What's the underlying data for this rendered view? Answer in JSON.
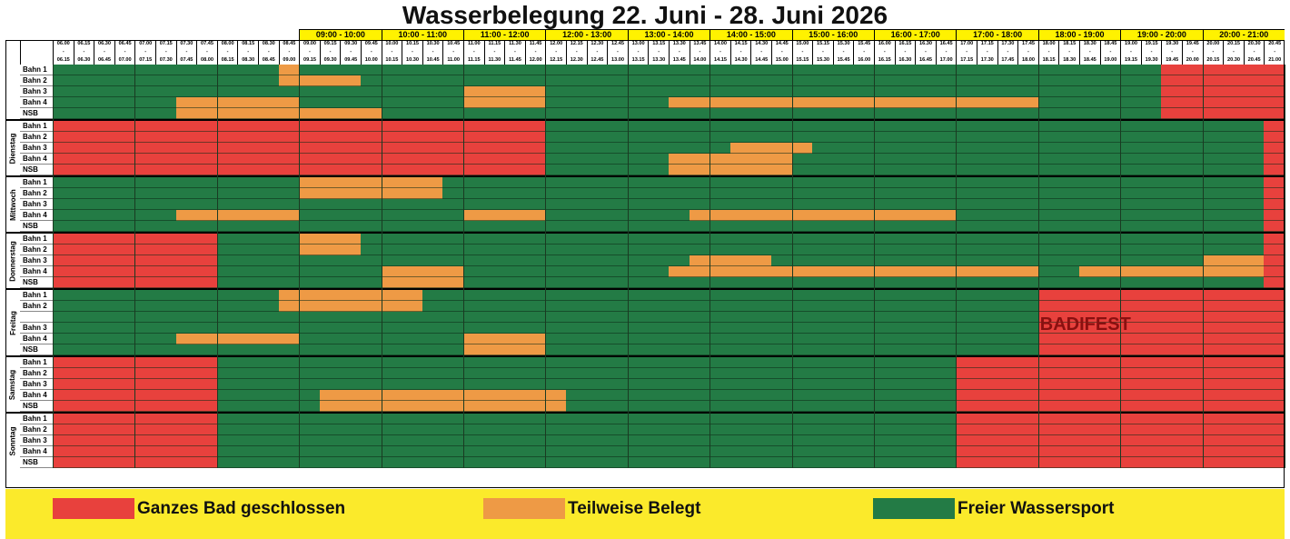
{
  "title": "Wasserbelegung 22. Juni - 28. Juni 2026",
  "colors": {
    "closed": "#e8413d",
    "partial": "#ee9a45",
    "free": "#237b45"
  },
  "hour_headers": [
    "09:00 - 10:00",
    "10:00 - 11:00",
    "11:00 - 12:00",
    "12:00 - 13:00",
    "13:00 - 14:00",
    "14:00 - 15:00",
    "15:00 - 16:00",
    "16:00 - 17:00",
    "17:00 - 18:00",
    "18:00 - 19:00",
    "19:00 - 20:00",
    "20:00 - 21:00"
  ],
  "slots": [
    {
      "from": "06.00",
      "to": "06.15"
    },
    {
      "from": "06.15",
      "to": "06.30"
    },
    {
      "from": "06.30",
      "to": "06.45"
    },
    {
      "from": "06.45",
      "to": "07.00"
    },
    {
      "from": "07.00",
      "to": "07.15"
    },
    {
      "from": "07.15",
      "to": "07.30"
    },
    {
      "from": "07.30",
      "to": "07.45"
    },
    {
      "from": "07.45",
      "to": "08.00"
    },
    {
      "from": "08.00",
      "to": "08.15"
    },
    {
      "from": "08.15",
      "to": "08.30"
    },
    {
      "from": "08.30",
      "to": "08.45"
    },
    {
      "from": "08.45",
      "to": "09.00"
    },
    {
      "from": "09.00",
      "to": "09.15"
    },
    {
      "from": "09.15",
      "to": "09.30"
    },
    {
      "from": "09.30",
      "to": "09.45"
    },
    {
      "from": "09.45",
      "to": "10.00"
    },
    {
      "from": "10.00",
      "to": "10.15"
    },
    {
      "from": "10.15",
      "to": "10.30"
    },
    {
      "from": "10.30",
      "to": "10.45"
    },
    {
      "from": "10.45",
      "to": "11.00"
    },
    {
      "from": "11.00",
      "to": "11.15"
    },
    {
      "from": "11.15",
      "to": "11.30"
    },
    {
      "from": "11.30",
      "to": "11.45"
    },
    {
      "from": "11.45",
      "to": "12.00"
    },
    {
      "from": "12.00",
      "to": "12.15"
    },
    {
      "from": "12.15",
      "to": "12.30"
    },
    {
      "from": "12.30",
      "to": "12.45"
    },
    {
      "from": "12.45",
      "to": "13.00"
    },
    {
      "from": "13.00",
      "to": "13.15"
    },
    {
      "from": "13.15",
      "to": "13.30"
    },
    {
      "from": "13.30",
      "to": "13.45"
    },
    {
      "from": "13.45",
      "to": "14.00"
    },
    {
      "from": "14.00",
      "to": "14.15"
    },
    {
      "from": "14.15",
      "to": "14.30"
    },
    {
      "from": "14.30",
      "to": "14.45"
    },
    {
      "from": "14.45",
      "to": "15.00"
    },
    {
      "from": "15.00",
      "to": "15.15"
    },
    {
      "from": "15.15",
      "to": "15.30"
    },
    {
      "from": "15.30",
      "to": "15.45"
    },
    {
      "from": "15.45",
      "to": "16.00"
    },
    {
      "from": "16.00",
      "to": "16.15"
    },
    {
      "from": "16.15",
      "to": "16.30"
    },
    {
      "from": "16.30",
      "to": "16.45"
    },
    {
      "from": "16.45",
      "to": "17.00"
    },
    {
      "from": "17.00",
      "to": "17.15"
    },
    {
      "from": "17.15",
      "to": "17.30"
    },
    {
      "from": "17.30",
      "to": "17.45"
    },
    {
      "from": "17.45",
      "to": "18.00"
    },
    {
      "from": "18.00",
      "to": "18.15"
    },
    {
      "from": "18.15",
      "to": "18.30"
    },
    {
      "from": "18.30",
      "to": "18.45"
    },
    {
      "from": "18.45",
      "to": "19.00"
    },
    {
      "from": "19.00",
      "to": "19.15"
    },
    {
      "from": "19.15",
      "to": "19.30"
    },
    {
      "from": "19.30",
      "to": "19.45"
    },
    {
      "from": "19.45",
      "to": "20.00"
    },
    {
      "from": "20.00",
      "to": "20.15"
    },
    {
      "from": "20.15",
      "to": "20.30"
    },
    {
      "from": "20.30",
      "to": "20.45"
    },
    {
      "from": "20.45",
      "to": "21.00"
    }
  ],
  "days": [
    {
      "name": "",
      "rows": [
        {
          "label": "Bahn 1",
          "bookings": [
            {
              "from": "08.45",
              "to": "09.00",
              "status": "partial"
            },
            {
              "from": "19.30",
              "to": "21.00",
              "status": "closed"
            }
          ]
        },
        {
          "label": "Bahn 2",
          "bookings": [
            {
              "from": "08.45",
              "to": "09.45",
              "status": "partial"
            },
            {
              "from": "19.30",
              "to": "21.00",
              "status": "closed"
            }
          ]
        },
        {
          "label": "Bahn 3",
          "bookings": [
            {
              "from": "11.00",
              "to": "12.00",
              "status": "partial"
            },
            {
              "from": "19.30",
              "to": "21.00",
              "status": "closed"
            }
          ]
        },
        {
          "label": "Bahn 4",
          "bookings": [
            {
              "from": "07.30",
              "to": "09.00",
              "status": "partial"
            },
            {
              "from": "11.00",
              "to": "12.00",
              "status": "partial"
            },
            {
              "from": "13.30",
              "to": "18.00",
              "status": "partial"
            },
            {
              "from": "19.30",
              "to": "21.00",
              "status": "closed"
            }
          ]
        },
        {
          "label": "NSB",
          "bookings": [
            {
              "from": "07.30",
              "to": "10.00",
              "status": "partial"
            },
            {
              "from": "19.30",
              "to": "21.00",
              "status": "closed"
            }
          ]
        }
      ]
    },
    {
      "name": "Dienstag",
      "rows": [
        {
          "label": "Bahn 1",
          "bookings": [
            {
              "from": "06.00",
              "to": "12.00",
              "status": "closed"
            },
            {
              "from": "20.45",
              "to": "21.00",
              "status": "closed"
            }
          ]
        },
        {
          "label": "Bahn 2",
          "bookings": [
            {
              "from": "06.00",
              "to": "12.00",
              "status": "closed"
            },
            {
              "from": "20.45",
              "to": "21.00",
              "status": "closed"
            }
          ]
        },
        {
          "label": "Bahn 3",
          "bookings": [
            {
              "from": "06.00",
              "to": "12.00",
              "status": "closed"
            },
            {
              "from": "14.15",
              "to": "15.15",
              "status": "partial"
            },
            {
              "from": "20.45",
              "to": "21.00",
              "status": "closed"
            }
          ]
        },
        {
          "label": "Bahn 4",
          "bookings": [
            {
              "from": "06.00",
              "to": "12.00",
              "status": "closed"
            },
            {
              "from": "13.30",
              "to": "15.00",
              "status": "partial"
            },
            {
              "from": "20.45",
              "to": "21.00",
              "status": "closed"
            }
          ]
        },
        {
          "label": "NSB",
          "bookings": [
            {
              "from": "06.00",
              "to": "12.00",
              "status": "closed"
            },
            {
              "from": "13.30",
              "to": "15.00",
              "status": "partial"
            },
            {
              "from": "20.45",
              "to": "21.00",
              "status": "closed"
            }
          ]
        }
      ]
    },
    {
      "name": "Mittwoch",
      "rows": [
        {
          "label": "Bahn 1",
          "bookings": [
            {
              "from": "09.00",
              "to": "10.45",
              "status": "partial"
            },
            {
              "from": "20.45",
              "to": "21.00",
              "status": "closed"
            }
          ]
        },
        {
          "label": "Bahn 2",
          "bookings": [
            {
              "from": "09.00",
              "to": "10.45",
              "status": "partial"
            },
            {
              "from": "20.45",
              "to": "21.00",
              "status": "closed"
            }
          ]
        },
        {
          "label": "Bahn 3",
          "bookings": [
            {
              "from": "20.45",
              "to": "21.00",
              "status": "closed"
            }
          ]
        },
        {
          "label": "Bahn 4",
          "bookings": [
            {
              "from": "07.30",
              "to": "09.00",
              "status": "partial"
            },
            {
              "from": "11.00",
              "to": "12.00",
              "status": "partial"
            },
            {
              "from": "13.45",
              "to": "17.00",
              "status": "partial"
            },
            {
              "from": "20.45",
              "to": "21.00",
              "status": "closed"
            }
          ]
        },
        {
          "label": "NSB",
          "bookings": [
            {
              "from": "20.45",
              "to": "21.00",
              "status": "closed"
            }
          ]
        }
      ]
    },
    {
      "name": "Donnerstag",
      "rows": [
        {
          "label": "Bahn 1",
          "bookings": [
            {
              "from": "06.00",
              "to": "08.00",
              "status": "closed"
            },
            {
              "from": "09.00",
              "to": "09.45",
              "status": "partial"
            },
            {
              "from": "20.45",
              "to": "21.00",
              "status": "closed"
            }
          ]
        },
        {
          "label": "Bahn 2",
          "bookings": [
            {
              "from": "06.00",
              "to": "08.00",
              "status": "closed"
            },
            {
              "from": "09.00",
              "to": "09.45",
              "status": "partial"
            },
            {
              "from": "20.45",
              "to": "21.00",
              "status": "closed"
            }
          ]
        },
        {
          "label": "Bahn 3",
          "bookings": [
            {
              "from": "06.00",
              "to": "08.00",
              "status": "closed"
            },
            {
              "from": "13.45",
              "to": "14.45",
              "status": "partial"
            },
            {
              "from": "20.00",
              "to": "20.45",
              "status": "partial"
            },
            {
              "from": "20.45",
              "to": "21.00",
              "status": "closed"
            }
          ]
        },
        {
          "label": "Bahn 4",
          "bookings": [
            {
              "from": "06.00",
              "to": "08.00",
              "status": "closed"
            },
            {
              "from": "10.00",
              "to": "11.00",
              "status": "partial"
            },
            {
              "from": "13.30",
              "to": "18.00",
              "status": "partial"
            },
            {
              "from": "18.30",
              "to": "20.45",
              "status": "partial"
            },
            {
              "from": "20.45",
              "to": "21.00",
              "status": "closed"
            }
          ]
        },
        {
          "label": "NSB",
          "bookings": [
            {
              "from": "06.00",
              "to": "08.00",
              "status": "closed"
            },
            {
              "from": "10.00",
              "to": "11.00",
              "status": "partial"
            },
            {
              "from": "20.45",
              "to": "21.00",
              "status": "closed"
            }
          ]
        }
      ]
    },
    {
      "name": "Freitag",
      "rows": [
        {
          "label": "Bahn 1",
          "bookings": [
            {
              "from": "08.45",
              "to": "10.30",
              "status": "partial"
            },
            {
              "from": "18.00",
              "to": "21.00",
              "status": "closed"
            }
          ]
        },
        {
          "label": "Bahn 2",
          "bookings": [
            {
              "from": "08.45",
              "to": "10.30",
              "status": "partial"
            },
            {
              "from": "18.00",
              "to": "21.00",
              "status": "closed"
            }
          ]
        },
        {
          "label": "",
          "bookings": [
            {
              "from": "18.00",
              "to": "21.00",
              "status": "closed"
            }
          ]
        },
        {
          "label": "Bahn 3",
          "bookings": [
            {
              "from": "18.00",
              "to": "21.00",
              "status": "closed"
            }
          ]
        },
        {
          "label": "Bahn 4",
          "bookings": [
            {
              "from": "07.30",
              "to": "09.00",
              "status": "partial"
            },
            {
              "from": "11.00",
              "to": "12.00",
              "status": "partial"
            },
            {
              "from": "18.00",
              "to": "21.00",
              "status": "closed"
            }
          ]
        },
        {
          "label": "NSB",
          "bookings": [
            {
              "from": "11.00",
              "to": "12.00",
              "status": "partial"
            },
            {
              "from": "18.00",
              "to": "21.00",
              "status": "closed"
            }
          ]
        }
      ]
    },
    {
      "name": "Samstag",
      "rows": [
        {
          "label": "Bahn 1",
          "bookings": [
            {
              "from": "06.00",
              "to": "08.00",
              "status": "closed"
            },
            {
              "from": "17.00",
              "to": "21.00",
              "status": "closed"
            }
          ]
        },
        {
          "label": "Bahn 2",
          "bookings": [
            {
              "from": "06.00",
              "to": "08.00",
              "status": "closed"
            },
            {
              "from": "17.00",
              "to": "21.00",
              "status": "closed"
            }
          ]
        },
        {
          "label": "Bahn 3",
          "bookings": [
            {
              "from": "06.00",
              "to": "08.00",
              "status": "closed"
            },
            {
              "from": "17.00",
              "to": "21.00",
              "status": "closed"
            }
          ]
        },
        {
          "label": "Bahn 4",
          "bookings": [
            {
              "from": "06.00",
              "to": "08.00",
              "status": "closed"
            },
            {
              "from": "09.15",
              "to": "12.15",
              "status": "partial"
            },
            {
              "from": "17.00",
              "to": "21.00",
              "status": "closed"
            }
          ]
        },
        {
          "label": "NSB",
          "bookings": [
            {
              "from": "06.00",
              "to": "08.00",
              "status": "closed"
            },
            {
              "from": "09.15",
              "to": "12.15",
              "status": "partial"
            },
            {
              "from": "17.00",
              "to": "21.00",
              "status": "closed"
            }
          ]
        }
      ]
    },
    {
      "name": "Sonntag",
      "rows": [
        {
          "label": "Bahn 1",
          "bookings": [
            {
              "from": "06.00",
              "to": "08.00",
              "status": "closed"
            },
            {
              "from": "17.00",
              "to": "21.00",
              "status": "closed"
            }
          ]
        },
        {
          "label": "Bahn 2",
          "bookings": [
            {
              "from": "06.00",
              "to": "08.00",
              "status": "closed"
            },
            {
              "from": "17.00",
              "to": "21.00",
              "status": "closed"
            }
          ]
        },
        {
          "label": "Bahn 3",
          "bookings": [
            {
              "from": "06.00",
              "to": "08.00",
              "status": "closed"
            },
            {
              "from": "17.00",
              "to": "21.00",
              "status": "closed"
            }
          ]
        },
        {
          "label": "Bahn 4",
          "bookings": [
            {
              "from": "06.00",
              "to": "08.00",
              "status": "closed"
            },
            {
              "from": "17.00",
              "to": "21.00",
              "status": "closed"
            }
          ]
        },
        {
          "label": "NSB",
          "bookings": [
            {
              "from": "06.00",
              "to": "08.00",
              "status": "closed"
            },
            {
              "from": "17.00",
              "to": "21.00",
              "status": "closed"
            }
          ]
        }
      ]
    }
  ],
  "event_label": "BADIFEST",
  "legend": [
    {
      "status": "closed",
      "label": "Ganzes Bad geschlossen"
    },
    {
      "status": "partial",
      "label": "Teilweise Belegt"
    },
    {
      "status": "free",
      "label": "Freier Wassersport"
    }
  ]
}
